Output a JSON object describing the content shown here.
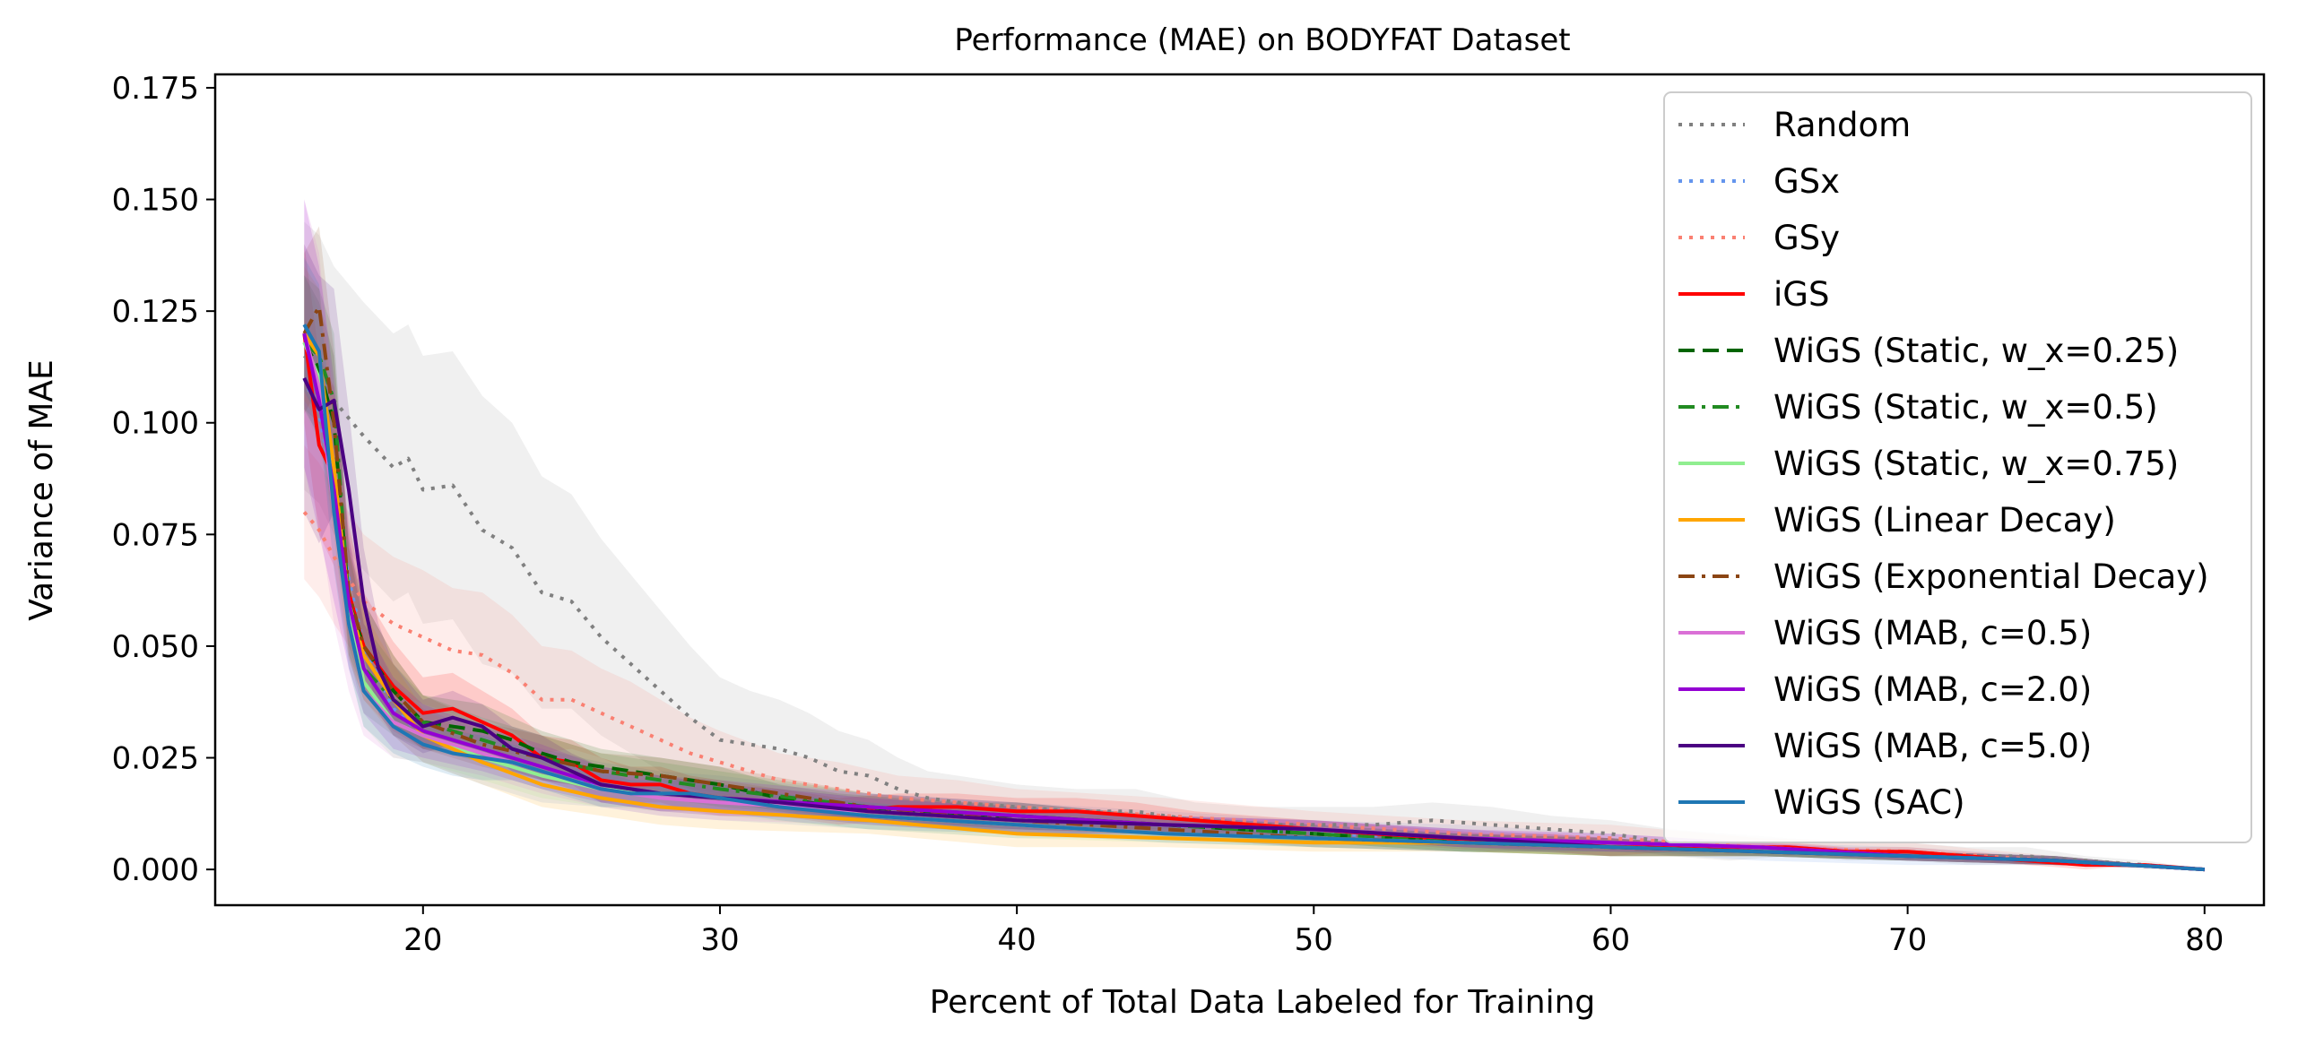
{
  "chart_data": {
    "type": "line",
    "title": "Performance (MAE) on BODYFAT Dataset",
    "xlabel": "Percent of Total Data Labeled for Training",
    "ylabel": "Variance of MAE",
    "xlim": [
      13,
      82
    ],
    "ylim": [
      -0.008,
      0.178
    ],
    "xticks": [
      "20",
      "30",
      "40",
      "50",
      "60",
      "70",
      "80"
    ],
    "yticks": [
      "0.000",
      "0.025",
      "0.050",
      "0.075",
      "0.100",
      "0.125",
      "0.150",
      "0.175"
    ],
    "grid": false,
    "legend_position": "upper right",
    "series": [
      {
        "name": "Random",
        "color": "#808080",
        "style": "dotted",
        "x": [
          16,
          16.5,
          17,
          18,
          19,
          19.5,
          20,
          21,
          22,
          23,
          24,
          25,
          26,
          27,
          28,
          29,
          30,
          31,
          32,
          33,
          34,
          35,
          36,
          37,
          38,
          40,
          42,
          44,
          46,
          48,
          50,
          52,
          54,
          56,
          58,
          60,
          62,
          64,
          66,
          68,
          70,
          72,
          74,
          76,
          78,
          80
        ],
        "y": [
          0.115,
          0.112,
          0.105,
          0.097,
          0.09,
          0.092,
          0.085,
          0.086,
          0.076,
          0.072,
          0.062,
          0.06,
          0.052,
          0.046,
          0.04,
          0.034,
          0.029,
          0.028,
          0.027,
          0.025,
          0.022,
          0.021,
          0.018,
          0.016,
          0.015,
          0.014,
          0.013,
          0.013,
          0.011,
          0.01,
          0.01,
          0.01,
          0.011,
          0.01,
          0.009,
          0.008,
          0.006,
          0.005,
          0.005,
          0.004,
          0.004,
          0.003,
          0.003,
          0.002,
          0.001,
          0.0
        ],
        "band": [
          0.03,
          0.03,
          0.03,
          0.03,
          0.03,
          0.03,
          0.03,
          0.03,
          0.03,
          0.028,
          0.026,
          0.024,
          0.022,
          0.02,
          0.018,
          0.016,
          0.014,
          0.012,
          0.011,
          0.01,
          0.009,
          0.008,
          0.007,
          0.006,
          0.006,
          0.005,
          0.005,
          0.005,
          0.004,
          0.004,
          0.004,
          0.004,
          0.004,
          0.004,
          0.003,
          0.003,
          0.003,
          0.003,
          0.002,
          0.002,
          0.002,
          0.002,
          0.002,
          0.001,
          0.001,
          0.0
        ]
      },
      {
        "name": "GSx",
        "color": "#6495ED",
        "style": "dotted",
        "x": [
          16,
          16.5,
          17,
          17.5,
          18,
          19,
          20,
          22,
          24,
          26,
          28,
          30,
          35,
          40,
          45,
          50,
          55,
          60,
          65,
          70,
          75,
          80
        ],
        "y": [
          0.11,
          0.102,
          0.085,
          0.065,
          0.05,
          0.036,
          0.03,
          0.025,
          0.021,
          0.019,
          0.017,
          0.016,
          0.013,
          0.011,
          0.01,
          0.008,
          0.007,
          0.006,
          0.004,
          0.003,
          0.002,
          0.0
        ],
        "band": [
          0.006,
          0.006,
          0.006,
          0.006,
          0.006,
          0.006,
          0.006,
          0.006,
          0.006,
          0.005,
          0.005,
          0.005,
          0.004,
          0.004,
          0.003,
          0.003,
          0.003,
          0.002,
          0.002,
          0.002,
          0.001,
          0.0
        ]
      },
      {
        "name": "GSy",
        "color": "#FA8072",
        "style": "dotted",
        "x": [
          16,
          16.5,
          17,
          18,
          19,
          20,
          21,
          22,
          23,
          24,
          25,
          26,
          27,
          28,
          29,
          30,
          32,
          34,
          36,
          38,
          40,
          45,
          50,
          55,
          60,
          65,
          70,
          75,
          80
        ],
        "y": [
          0.08,
          0.076,
          0.07,
          0.06,
          0.055,
          0.052,
          0.049,
          0.048,
          0.044,
          0.038,
          0.038,
          0.035,
          0.032,
          0.029,
          0.026,
          0.024,
          0.02,
          0.018,
          0.016,
          0.015,
          0.014,
          0.012,
          0.01,
          0.008,
          0.007,
          0.005,
          0.004,
          0.002,
          0.0
        ],
        "band": [
          0.015,
          0.015,
          0.015,
          0.015,
          0.015,
          0.015,
          0.014,
          0.014,
          0.013,
          0.012,
          0.011,
          0.01,
          0.01,
          0.009,
          0.008,
          0.007,
          0.006,
          0.006,
          0.005,
          0.005,
          0.004,
          0.004,
          0.003,
          0.003,
          0.003,
          0.002,
          0.002,
          0.001,
          0.0
        ]
      },
      {
        "name": "iGS",
        "color": "#FF0000",
        "style": "solid",
        "x": [
          16,
          16.5,
          17,
          17.5,
          18,
          19,
          20,
          21,
          22,
          23,
          24,
          25,
          26,
          27,
          28,
          29,
          30,
          32,
          34,
          36,
          38,
          40,
          42,
          44,
          46,
          48,
          50,
          52,
          54,
          56,
          58,
          60,
          62,
          64,
          66,
          68,
          70,
          72,
          74,
          76,
          78,
          80
        ],
        "y": [
          0.12,
          0.095,
          0.088,
          0.062,
          0.05,
          0.041,
          0.035,
          0.036,
          0.033,
          0.03,
          0.025,
          0.024,
          0.02,
          0.019,
          0.019,
          0.017,
          0.016,
          0.015,
          0.013,
          0.014,
          0.014,
          0.013,
          0.013,
          0.012,
          0.011,
          0.01,
          0.009,
          0.008,
          0.007,
          0.006,
          0.006,
          0.005,
          0.005,
          0.005,
          0.005,
          0.004,
          0.004,
          0.003,
          0.002,
          0.001,
          0.001,
          0.0
        ],
        "band": [
          0.02,
          0.02,
          0.02,
          0.015,
          0.012,
          0.01,
          0.008,
          0.008,
          0.007,
          0.006,
          0.005,
          0.005,
          0.005,
          0.004,
          0.004,
          0.004,
          0.004,
          0.003,
          0.003,
          0.003,
          0.003,
          0.003,
          0.003,
          0.003,
          0.002,
          0.002,
          0.002,
          0.002,
          0.002,
          0.002,
          0.002,
          0.002,
          0.001,
          0.001,
          0.001,
          0.001,
          0.001,
          0.001,
          0.001,
          0.001,
          0.0,
          0.0
        ]
      },
      {
        "name": "WiGS (Static, w_x=0.25)",
        "color": "#006400",
        "style": "dashed",
        "x": [
          16,
          16.5,
          17,
          17.5,
          18,
          19,
          20,
          21,
          22,
          23,
          24,
          25,
          26,
          28,
          30,
          32,
          34,
          36,
          38,
          40,
          45,
          50,
          55,
          60,
          65,
          70,
          75,
          80
        ],
        "y": [
          0.118,
          0.112,
          0.1,
          0.06,
          0.05,
          0.04,
          0.033,
          0.032,
          0.031,
          0.029,
          0.026,
          0.024,
          0.023,
          0.021,
          0.019,
          0.016,
          0.014,
          0.013,
          0.012,
          0.012,
          0.01,
          0.008,
          0.006,
          0.005,
          0.004,
          0.003,
          0.002,
          0.0
        ],
        "band": [
          0.015,
          0.015,
          0.015,
          0.012,
          0.01,
          0.008,
          0.006,
          0.006,
          0.006,
          0.005,
          0.005,
          0.005,
          0.004,
          0.004,
          0.004,
          0.003,
          0.003,
          0.003,
          0.003,
          0.003,
          0.002,
          0.002,
          0.002,
          0.002,
          0.001,
          0.001,
          0.001,
          0.0
        ]
      },
      {
        "name": "WiGS (Static, w_x=0.5)",
        "color": "#228B22",
        "style": "dashdot",
        "x": [
          16,
          16.5,
          17,
          17.5,
          18,
          19,
          20,
          22,
          24,
          26,
          28,
          30,
          35,
          40,
          45,
          50,
          55,
          60,
          65,
          70,
          75,
          80
        ],
        "y": [
          0.118,
          0.115,
          0.105,
          0.06,
          0.045,
          0.038,
          0.033,
          0.029,
          0.025,
          0.022,
          0.02,
          0.018,
          0.014,
          0.012,
          0.01,
          0.008,
          0.006,
          0.005,
          0.004,
          0.003,
          0.002,
          0.0
        ],
        "band": [
          0.015,
          0.015,
          0.015,
          0.012,
          0.01,
          0.008,
          0.006,
          0.005,
          0.005,
          0.004,
          0.004,
          0.004,
          0.003,
          0.003,
          0.002,
          0.002,
          0.002,
          0.002,
          0.001,
          0.001,
          0.001,
          0.0
        ]
      },
      {
        "name": "WiGS (Static, w_x=0.75)",
        "color": "#90EE90",
        "style": "solid",
        "x": [
          16,
          16.5,
          17,
          17.5,
          18,
          19,
          20,
          22,
          24,
          26,
          28,
          30,
          35,
          40,
          45,
          50,
          55,
          60,
          65,
          70,
          75,
          80
        ],
        "y": [
          0.118,
          0.11,
          0.09,
          0.058,
          0.042,
          0.033,
          0.03,
          0.025,
          0.021,
          0.018,
          0.017,
          0.016,
          0.012,
          0.01,
          0.008,
          0.007,
          0.006,
          0.005,
          0.004,
          0.003,
          0.002,
          0.0
        ],
        "band": [
          0.015,
          0.015,
          0.015,
          0.012,
          0.01,
          0.008,
          0.006,
          0.005,
          0.005,
          0.004,
          0.004,
          0.004,
          0.003,
          0.003,
          0.002,
          0.002,
          0.002,
          0.002,
          0.001,
          0.001,
          0.001,
          0.0
        ]
      },
      {
        "name": "WiGS (Linear Decay)",
        "color": "#FFA500",
        "style": "solid",
        "x": [
          16,
          16.5,
          17,
          17.5,
          18,
          19,
          20,
          22,
          24,
          26,
          28,
          30,
          35,
          40,
          45,
          50,
          55,
          60,
          65,
          70,
          75,
          80
        ],
        "y": [
          0.12,
          0.115,
          0.09,
          0.06,
          0.048,
          0.038,
          0.03,
          0.024,
          0.019,
          0.016,
          0.014,
          0.013,
          0.011,
          0.008,
          0.007,
          0.006,
          0.006,
          0.005,
          0.004,
          0.003,
          0.002,
          0.0
        ],
        "band": [
          0.015,
          0.015,
          0.015,
          0.012,
          0.01,
          0.008,
          0.006,
          0.005,
          0.005,
          0.004,
          0.004,
          0.004,
          0.003,
          0.003,
          0.002,
          0.002,
          0.002,
          0.002,
          0.001,
          0.001,
          0.001,
          0.0
        ]
      },
      {
        "name": "WiGS (Exponential Decay)",
        "color": "#8B4513",
        "style": "dashdot",
        "x": [
          16,
          16.5,
          17,
          17.5,
          18,
          19,
          20,
          22,
          24,
          26,
          28,
          30,
          35,
          40,
          45,
          50,
          55,
          60,
          65,
          70,
          75,
          80
        ],
        "y": [
          0.12,
          0.126,
          0.1,
          0.062,
          0.05,
          0.04,
          0.033,
          0.028,
          0.025,
          0.022,
          0.021,
          0.019,
          0.014,
          0.011,
          0.009,
          0.007,
          0.006,
          0.005,
          0.004,
          0.003,
          0.002,
          0.0
        ],
        "band": [
          0.018,
          0.018,
          0.016,
          0.012,
          0.01,
          0.008,
          0.006,
          0.005,
          0.005,
          0.004,
          0.004,
          0.004,
          0.003,
          0.003,
          0.002,
          0.002,
          0.002,
          0.002,
          0.001,
          0.001,
          0.001,
          0.0
        ]
      },
      {
        "name": "WiGS (MAB, c=0.5)",
        "color": "#DA70D6",
        "style": "solid",
        "x": [
          16,
          16.5,
          17,
          17.5,
          18,
          19,
          20,
          22,
          24,
          26,
          28,
          30,
          35,
          40,
          45,
          50,
          55,
          60,
          65,
          70,
          75,
          80
        ],
        "y": [
          0.12,
          0.108,
          0.08,
          0.055,
          0.04,
          0.033,
          0.03,
          0.026,
          0.022,
          0.018,
          0.016,
          0.015,
          0.013,
          0.011,
          0.01,
          0.009,
          0.007,
          0.006,
          0.005,
          0.003,
          0.002,
          0.0
        ],
        "band": [
          0.03,
          0.03,
          0.025,
          0.015,
          0.01,
          0.008,
          0.006,
          0.005,
          0.005,
          0.004,
          0.004,
          0.004,
          0.003,
          0.003,
          0.002,
          0.002,
          0.002,
          0.002,
          0.001,
          0.001,
          0.001,
          0.0
        ]
      },
      {
        "name": "WiGS (MAB, c=2.0)",
        "color": "#9400D3",
        "style": "solid",
        "x": [
          16,
          16.5,
          17,
          17.5,
          18,
          19,
          20,
          22,
          24,
          26,
          28,
          30,
          35,
          40,
          45,
          50,
          55,
          60,
          65,
          70,
          75,
          80
        ],
        "y": [
          0.12,
          0.105,
          0.085,
          0.06,
          0.045,
          0.035,
          0.031,
          0.027,
          0.023,
          0.019,
          0.017,
          0.016,
          0.014,
          0.012,
          0.01,
          0.009,
          0.007,
          0.006,
          0.005,
          0.003,
          0.002,
          0.0
        ],
        "band": [
          0.03,
          0.03,
          0.025,
          0.015,
          0.01,
          0.008,
          0.006,
          0.005,
          0.005,
          0.004,
          0.004,
          0.004,
          0.003,
          0.003,
          0.002,
          0.002,
          0.002,
          0.002,
          0.001,
          0.001,
          0.001,
          0.0
        ]
      },
      {
        "name": "WiGS (MAB, c=5.0)",
        "color": "#4B0082",
        "style": "solid",
        "x": [
          16,
          16.5,
          17,
          17.5,
          18,
          18.5,
          19,
          20,
          21,
          22,
          23,
          24,
          25,
          26,
          28,
          30,
          32,
          35,
          40,
          45,
          50,
          55,
          60,
          65,
          70,
          75,
          80
        ],
        "y": [
          0.11,
          0.103,
          0.105,
          0.085,
          0.06,
          0.045,
          0.038,
          0.032,
          0.034,
          0.032,
          0.027,
          0.025,
          0.022,
          0.019,
          0.017,
          0.016,
          0.015,
          0.013,
          0.011,
          0.01,
          0.009,
          0.007,
          0.005,
          0.004,
          0.003,
          0.002,
          0.0
        ],
        "band": [
          0.03,
          0.03,
          0.025,
          0.018,
          0.012,
          0.01,
          0.008,
          0.006,
          0.006,
          0.005,
          0.005,
          0.005,
          0.004,
          0.004,
          0.004,
          0.003,
          0.003,
          0.003,
          0.003,
          0.002,
          0.002,
          0.002,
          0.002,
          0.001,
          0.001,
          0.001,
          0.0
        ]
      },
      {
        "name": "WiGS (SAC)",
        "color": "#1F77B4",
        "style": "solid",
        "x": [
          16,
          16.5,
          17,
          17.5,
          18,
          19,
          20,
          21,
          22,
          23,
          24,
          25,
          26,
          27,
          28,
          29,
          30,
          32,
          35,
          40,
          45,
          50,
          55,
          60,
          65,
          70,
          75,
          80
        ],
        "y": [
          0.122,
          0.116,
          0.08,
          0.055,
          0.04,
          0.032,
          0.028,
          0.026,
          0.025,
          0.024,
          0.022,
          0.02,
          0.018,
          0.017,
          0.017,
          0.017,
          0.016,
          0.014,
          0.012,
          0.01,
          0.008,
          0.007,
          0.006,
          0.005,
          0.004,
          0.003,
          0.002,
          0.0
        ],
        "band": [
          0.015,
          0.015,
          0.013,
          0.01,
          0.008,
          0.006,
          0.005,
          0.005,
          0.005,
          0.004,
          0.004,
          0.004,
          0.004,
          0.003,
          0.003,
          0.003,
          0.003,
          0.003,
          0.003,
          0.002,
          0.002,
          0.002,
          0.002,
          0.001,
          0.001,
          0.001,
          0.001,
          0.0
        ]
      }
    ]
  }
}
